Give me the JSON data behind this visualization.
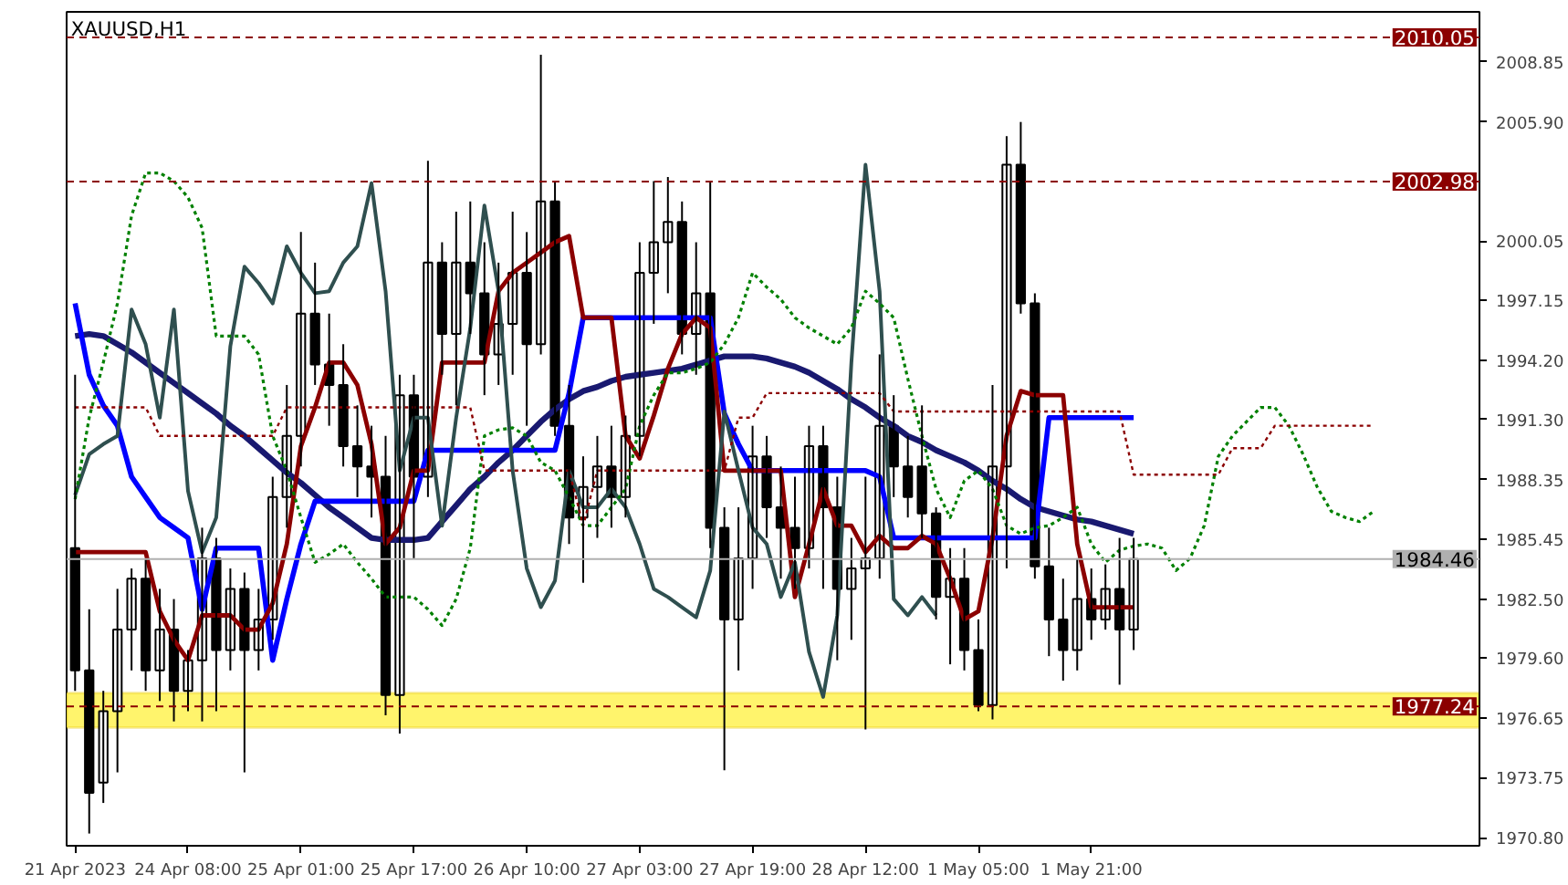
{
  "chart_data": {
    "type": "candlestick",
    "title": "XAUUSD,H1",
    "categories": [
      "21 Apr 2023",
      null,
      null,
      null,
      null,
      null,
      null,
      null,
      "24 Apr 08:00",
      null,
      null,
      null,
      null,
      null,
      null,
      null,
      "25 Apr 01:00",
      null,
      null,
      null,
      null,
      null,
      null,
      null,
      "25 Apr 17:00",
      null,
      null,
      null,
      null,
      null,
      null,
      null,
      "26 Apr 10:00",
      null,
      null,
      null,
      null,
      null,
      null,
      null,
      "27 Apr 03:00",
      null,
      null,
      null,
      null,
      null,
      null,
      null,
      "27 Apr 19:00",
      null,
      null,
      null,
      null,
      null,
      null,
      null,
      "28 Apr 12:00",
      null,
      null,
      null,
      null,
      null,
      null,
      null,
      "1 May 05:00",
      null,
      null,
      null,
      null,
      null,
      null,
      null,
      "1 May 21:00",
      null,
      null,
      null,
      null,
      null,
      null,
      null,
      null,
      null,
      null,
      null,
      null,
      null,
      null,
      null,
      null,
      null,
      null,
      null,
      null,
      null,
      null,
      null,
      null,
      null,
      null,
      null
    ],
    "ohlc": [
      [
        1985,
        1993.5,
        1978,
        1979
      ],
      [
        1979,
        1982,
        1971,
        1973
      ],
      [
        1973.5,
        1978,
        1972.5,
        1977
      ],
      [
        1977,
        1983,
        1974,
        1981
      ],
      [
        1981,
        1984,
        1979,
        1983.5
      ],
      [
        1983.5,
        1984.5,
        1978,
        1979
      ],
      [
        1979,
        1983,
        1977.5,
        1981
      ],
      [
        1981,
        1982.5,
        1976.5,
        1978
      ],
      [
        1978,
        1980,
        1977,
        1979.5
      ],
      [
        1979.5,
        1986,
        1976.5,
        1984.5
      ],
      [
        1984.5,
        1985.5,
        1977,
        1980
      ],
      [
        1980,
        1984,
        1979,
        1983
      ],
      [
        1983,
        1983.8,
        1974,
        1980
      ],
      [
        1980,
        1983,
        1979,
        1981.5
      ],
      [
        1981.5,
        1988.5,
        1980.5,
        1987.5
      ],
      [
        1987.5,
        1993,
        1986,
        1990.5
      ],
      [
        1990.5,
        2000.5,
        1989,
        1996.5
      ],
      [
        1996.5,
        1999,
        1993,
        1994
      ],
      [
        1994,
        1996.5,
        1991,
        1993
      ],
      [
        1993,
        1995,
        1989,
        1990
      ],
      [
        1990,
        1992,
        1987.5,
        1989
      ],
      [
        1989,
        1991,
        1986.5,
        1988.5
      ],
      [
        1988.5,
        1990.5,
        1976.8,
        1977.8
      ],
      [
        1977.8,
        1993.5,
        1975.9,
        1992.5
      ],
      [
        1992.5,
        1993.5,
        1984.5,
        1988.5
      ],
      [
        1988.5,
        2004,
        1987.5,
        1999
      ],
      [
        1999,
        2000,
        1993.5,
        1995.5
      ],
      [
        1995.5,
        2001.5,
        1992,
        1999
      ],
      [
        1999,
        2002,
        1995.5,
        1997.5
      ],
      [
        1997.5,
        2000,
        1992.5,
        1994.5
      ],
      [
        1994.5,
        1999,
        1993,
        1996
      ],
      [
        1996,
        2001.5,
        1993.5,
        1998.5
      ],
      [
        1998.5,
        2000.5,
        1991,
        1995
      ],
      [
        1995,
        2009.2,
        1994.5,
        2002
      ],
      [
        2002,
        2003,
        1990.5,
        1991
      ],
      [
        1991,
        1993,
        1985.2,
        1986.5
      ],
      [
        1986.5,
        1989.5,
        1983.3,
        1988
      ],
      [
        1988,
        1990.5,
        1985.5,
        1989
      ],
      [
        1989,
        1991,
        1986,
        1987.5
      ],
      [
        1987.5,
        1991.5,
        1986.5,
        1990.5
      ],
      [
        1990.5,
        2000,
        1989.5,
        1998.5
      ],
      [
        1998.5,
        2003,
        1996,
        2000
      ],
      [
        2000,
        2003.2,
        1997.5,
        2001
      ],
      [
        2001,
        2002,
        1994.5,
        1995.5
      ],
      [
        1995.5,
        2000,
        1993.5,
        1997.5
      ],
      [
        1997.5,
        2003,
        1985,
        1986
      ],
      [
        1986,
        1987,
        1974.1,
        1981.5
      ],
      [
        1981.5,
        1987,
        1979,
        1984.5
      ],
      [
        1984.5,
        1991,
        1983,
        1989.5
      ],
      [
        1989.5,
        1990.5,
        1985.5,
        1987
      ],
      [
        1987,
        1989,
        1983.5,
        1986
      ],
      [
        1986,
        1988.5,
        1983,
        1985
      ],
      [
        1985,
        1991,
        1984,
        1990
      ],
      [
        1990,
        1991,
        1983,
        1987
      ],
      [
        1987,
        1988.5,
        1979.5,
        1983
      ],
      [
        1983,
        1985.5,
        1980.5,
        1984
      ],
      [
        1984,
        1988.5,
        1976.1,
        1984.5
      ],
      [
        1984.5,
        1994.5,
        1983.5,
        1991
      ],
      [
        1991,
        1992.5,
        1987.5,
        1989
      ],
      [
        1989,
        1990.5,
        1986.5,
        1987.5
      ],
      [
        1989,
        1992,
        1985.5,
        1986.7
      ],
      [
        1986.7,
        1987,
        1981.5,
        1982.6
      ],
      [
        1982.6,
        1985,
        1979.3,
        1983.5
      ],
      [
        1983.5,
        1985,
        1979,
        1980
      ],
      [
        1980,
        1981.5,
        1977,
        1977.3
      ],
      [
        1977.3,
        1993,
        1976.6,
        1989
      ],
      [
        1989,
        2005.2,
        1984,
        2003.8
      ],
      [
        2003.8,
        2005.9,
        1996.5,
        1997
      ],
      [
        1997,
        1997.5,
        1983.5,
        1984.1
      ],
      [
        1984.1,
        1986,
        1979.7,
        1981.5
      ],
      [
        1981.5,
        1983.5,
        1978.5,
        1980
      ],
      [
        1980,
        1984.5,
        1979,
        1982.5
      ],
      [
        1982.5,
        1984,
        1980.5,
        1981.5
      ],
      [
        1981.5,
        1984.2,
        1981,
        1983
      ],
      [
        1983,
        1985.5,
        1978.3,
        1981
      ],
      [
        1981,
        1985.5,
        1980,
        1984.46
      ],
      null,
      null,
      null,
      null,
      null,
      null,
      null,
      null,
      null,
      null,
      null,
      null,
      null,
      null,
      null,
      null,
      null,
      null,
      null,
      null,
      null,
      null,
      null,
      null
    ],
    "series": [
      {
        "type": "line",
        "color": "#191970",
        "line_style": "solid",
        "values": [
          1995.4,
          1995.5,
          1995.4,
          1995,
          1994.6,
          1994.1,
          1993.6,
          1993.1,
          1992.6,
          1992.1,
          1991.6,
          1991,
          1990.5,
          1989.9,
          1989.3,
          1988.7,
          1988.2,
          1987.6,
          1987,
          1986.5,
          1986,
          1985.5,
          1985.4,
          1985.4,
          1985.4,
          1985.5,
          1986.3,
          1987.1,
          1987.9,
          1988.5,
          1989.2,
          1989.8,
          1990.5,
          1991.2,
          1991.8,
          1992.3,
          1992.7,
          1992.9,
          1993.2,
          1993.4,
          1993.5,
          1993.6,
          1993.7,
          1993.8,
          1994,
          1994.2,
          1994.4,
          1994.4,
          1994.4,
          1994.3,
          1994.1,
          1993.9,
          1993.6,
          1993.2,
          1992.8,
          1992.3,
          1991.9,
          1991.4,
          1991,
          1990.5,
          1990.2,
          1989.8,
          1989.5,
          1989.2,
          1988.8,
          1988.3,
          1987.9,
          1987.4,
          1987,
          1986.8,
          1986.6,
          1986.4,
          1986.3,
          1986.1,
          1985.9,
          1985.7,
          null,
          null,
          null,
          null,
          null,
          null,
          null,
          null,
          null,
          null,
          null,
          null,
          null,
          null,
          null,
          null,
          null,
          null,
          null,
          null,
          null,
          null,
          null,
          null
        ]
      },
      {
        "type": "line",
        "color": "#0000ff",
        "line_style": "solid",
        "values": [
          1997,
          1993.5,
          1992,
          1991,
          1988.5,
          1987.5,
          1986.5,
          1986,
          1985.5,
          1982,
          1985,
          1985,
          1985,
          1985,
          1979.5,
          1982.5,
          1985.2,
          1987.3,
          1987.3,
          1987.3,
          1987.3,
          1987.3,
          1987.3,
          1987.3,
          1987.3,
          1989.8,
          1989.8,
          1989.8,
          1989.8,
          1989.8,
          1989.8,
          1989.8,
          1989.8,
          1989.8,
          1989.8,
          1992.6,
          1996.3,
          1996.3,
          1996.3,
          1996.3,
          1996.3,
          1996.3,
          1996.3,
          1996.3,
          1996.3,
          1996.3,
          1991.6,
          1990.1,
          1988.8,
          1988.8,
          1988.8,
          1988.8,
          1988.8,
          1988.8,
          1988.8,
          1988.8,
          1988.8,
          1988.5,
          1985.5,
          1985.5,
          1985.5,
          1985.5,
          1985.5,
          1985.5,
          1985.5,
          1985.5,
          1985.5,
          1985.5,
          1985.5,
          1991.4,
          1991.4,
          1991.4,
          1991.4,
          1991.4,
          1991.4,
          1991.4,
          null,
          null,
          null,
          null,
          null,
          null,
          null,
          null,
          null,
          null,
          null,
          null,
          null,
          null,
          null,
          null,
          null,
          null,
          null,
          null,
          null,
          null,
          null,
          null
        ]
      },
      {
        "type": "line",
        "color": "#8b0000",
        "line_style": "solid",
        "values": [
          1984.8,
          1984.8,
          1984.8,
          1984.8,
          1984.8,
          1984.8,
          1981.9,
          1980.5,
          1979.5,
          1981.7,
          1981.7,
          1981.7,
          1981,
          1981,
          1982.3,
          1985.2,
          1990,
          1991.9,
          1994.1,
          1994.1,
          1993,
          1990.1,
          1985.2,
          1986,
          1988.8,
          1988.8,
          1994.1,
          1994.1,
          1994.1,
          1994.1,
          1997.6,
          1998.5,
          1999,
          1999.5,
          2000,
          2000.3,
          1996.3,
          1996.3,
          1996.3,
          1990.5,
          1989.4,
          1991.5,
          1993.8,
          1995.5,
          1996.3,
          1995.8,
          1988.8,
          1988.8,
          1988.8,
          1988.8,
          1988.8,
          1982.6,
          1985.2,
          1987.9,
          1986.1,
          1986.1,
          1984.8,
          1985.6,
          1985,
          1985,
          1985.6,
          1985.2,
          1983.5,
          1981.5,
          1981.9,
          1985.5,
          1990.5,
          1992.7,
          1992.5,
          1992.5,
          1992.5,
          1985.2,
          1982.1,
          1982.1,
          1982.1,
          1982.1,
          null,
          null,
          null,
          null,
          null,
          null,
          null,
          null,
          null,
          null,
          null,
          null,
          null,
          null,
          null,
          null,
          null,
          null,
          null,
          null,
          null,
          null,
          null,
          null
        ]
      },
      {
        "type": "line",
        "color": "#2f4f4f",
        "line_style": "solid",
        "values": [
          1987.6,
          1989.6,
          1990.1,
          1990.5,
          1996.7,
          1995,
          1991.4,
          1996.7,
          1987.8,
          1984.8,
          1986.5,
          1994.9,
          1998.8,
          1998,
          1997,
          1999.8,
          1998.5,
          1997.5,
          1997.6,
          1999,
          1999.8,
          2002.9,
          1997.6,
          1988.8,
          1991.4,
          1991.4,
          1986.1,
          1991.4,
          1995.8,
          2001.8,
          1997.6,
          1988.8,
          1984,
          1982.1,
          1983.4,
          1988.8,
          1987,
          1987,
          1987.9,
          1987,
          1985.2,
          1983,
          1982.6,
          1982.1,
          1981.6,
          1983.9,
          1991.7,
          1988.8,
          1986,
          1985.2,
          1982.6,
          1984.3,
          1979.9,
          1977.7,
          1981.7,
          1994.1,
          2003.8,
          1997.6,
          1982.5,
          1981.7,
          1982.6,
          1981.7,
          null,
          null,
          null,
          null,
          null,
          null,
          null,
          null,
          null,
          null,
          null,
          null,
          null,
          null,
          null,
          null,
          null,
          null,
          null,
          null,
          null,
          null,
          null,
          null,
          null,
          null,
          null,
          null,
          null,
          null,
          null,
          null,
          null,
          null,
          null,
          null,
          null,
          null
        ]
      },
      {
        "type": "line",
        "color": "#008000",
        "line_style": "dotted",
        "values": [
          1987.4,
          1991.4,
          1994.1,
          1997,
          2001.3,
          2003.4,
          2003.4,
          2003,
          2002.2,
          2000.7,
          1995.4,
          1995.4,
          1995.4,
          1994.5,
          1990.5,
          1988.8,
          1986.5,
          1984.3,
          1984.7,
          1985.2,
          1984.3,
          1983.5,
          1982.6,
          1982.6,
          1982.6,
          1982,
          1981.2,
          1982.5,
          1985,
          1990.5,
          1990.8,
          1990.9,
          1990.5,
          1989.2,
          1988.8,
          1987.5,
          1986.1,
          1986.1,
          1987,
          1987.9,
          1991,
          1992.5,
          1993.6,
          1993.6,
          1993.8,
          1994.1,
          1995,
          1996.3,
          1998.5,
          1997.8,
          1997.2,
          1996.3,
          1995.8,
          1995.4,
          1995,
          1995.8,
          1997.6,
          1997,
          1996.3,
          1993.3,
          1990.5,
          1987.9,
          1986.5,
          1988.3,
          1988.8,
          1987.9,
          1986.1,
          1985.7,
          1986,
          1986.1,
          1986.5,
          1987,
          1985.2,
          1984.3,
          1984.9,
          1985.1,
          1985.2,
          1985,
          1983.9,
          1984.5,
          1986.1,
          1989.5,
          1990.5,
          1991.2,
          1991.9,
          1991.9,
          1991,
          1989.6,
          1988,
          1986.8,
          1986.5,
          1986.3,
          1986.8,
          null,
          null,
          null,
          null,
          null,
          null,
          null
        ]
      },
      {
        "type": "line",
        "color": "#8b0000",
        "line_style": "dotted",
        "values": [
          1991.9,
          1991.9,
          1991.9,
          1991.9,
          1991.9,
          1991.9,
          1990.5,
          1990.5,
          1990.5,
          1990.5,
          1990.5,
          1990.5,
          1990.5,
          1990.5,
          1990.5,
          1991.9,
          1991.9,
          1991.9,
          1991.9,
          1991.9,
          1991.9,
          1991.9,
          1991.9,
          1991.9,
          1991.9,
          1991.9,
          1991.9,
          1991.9,
          1991.9,
          1988.8,
          1988.8,
          1988.8,
          1988.8,
          1988.8,
          1988.8,
          1988.8,
          1986.1,
          1988.8,
          1988.8,
          1988.8,
          1988.8,
          1988.8,
          1988.8,
          1988.8,
          1988.8,
          1988.8,
          1988.8,
          1991.4,
          1991.4,
          1992.6,
          1992.6,
          1992.6,
          1992.6,
          1992.6,
          1992.6,
          1992.6,
          1992.6,
          1992.6,
          1991.7,
          1991.7,
          1991.7,
          1991.7,
          1991.7,
          1991.7,
          1991.7,
          1991.7,
          1991.7,
          1991.7,
          1991.7,
          1991.7,
          1991.7,
          1991.7,
          1991.7,
          1991.7,
          1991.7,
          1988.6,
          1988.6,
          1988.6,
          1988.6,
          1988.6,
          1988.6,
          1988.6,
          1989.9,
          1989.9,
          1989.9,
          1991,
          1991,
          1991,
          1991,
          1991,
          1991,
          1991,
          1991,
          null,
          null,
          null,
          null,
          null,
          null,
          null
        ]
      }
    ],
    "ylim": [
      1970.4,
      2011.3
    ],
    "yticks": [
      {
        "value": 1970.8,
        "label": "1970.80"
      },
      {
        "value": 1973.75,
        "label": "1973.75"
      },
      {
        "value": 1976.65,
        "label": "1976.65"
      },
      {
        "value": 1979.6,
        "label": "1979.60"
      },
      {
        "value": 1982.5,
        "label": "1982.50"
      },
      {
        "value": 1985.45,
        "label": "1985.45"
      },
      {
        "value": 1988.35,
        "label": "1988.35"
      },
      {
        "value": 1991.3,
        "label": "1991.30"
      },
      {
        "value": 1994.2,
        "label": "1994.20"
      },
      {
        "value": 1997.15,
        "label": "1997.15"
      },
      {
        "value": 2000.05,
        "label": "2000.05"
      },
      {
        "value": 2005.9,
        "label": "2005.90"
      },
      {
        "value": 2008.85,
        "label": "2008.85"
      }
    ],
    "ref_lines": [
      {
        "axis": "y",
        "value": 2010.05,
        "label": "2010.05",
        "color": "#8b0000",
        "line_style": "dashed"
      },
      {
        "axis": "y",
        "value": 2002.98,
        "label": "2002.98",
        "color": "#8b0000",
        "line_style": "dashed"
      },
      {
        "axis": "y",
        "value": 1984.46,
        "label": "1984.46",
        "color": "#b0b0b0",
        "line_style": "solid"
      },
      {
        "axis": "y",
        "value": 1977.24,
        "label": "1977.24",
        "color": "#8b0000",
        "line_style": "dashed"
      }
    ],
    "bands": [
      {
        "axis": "y",
        "from": 1976.2,
        "to": 1977.9,
        "color": "#fff35c"
      }
    ]
  }
}
